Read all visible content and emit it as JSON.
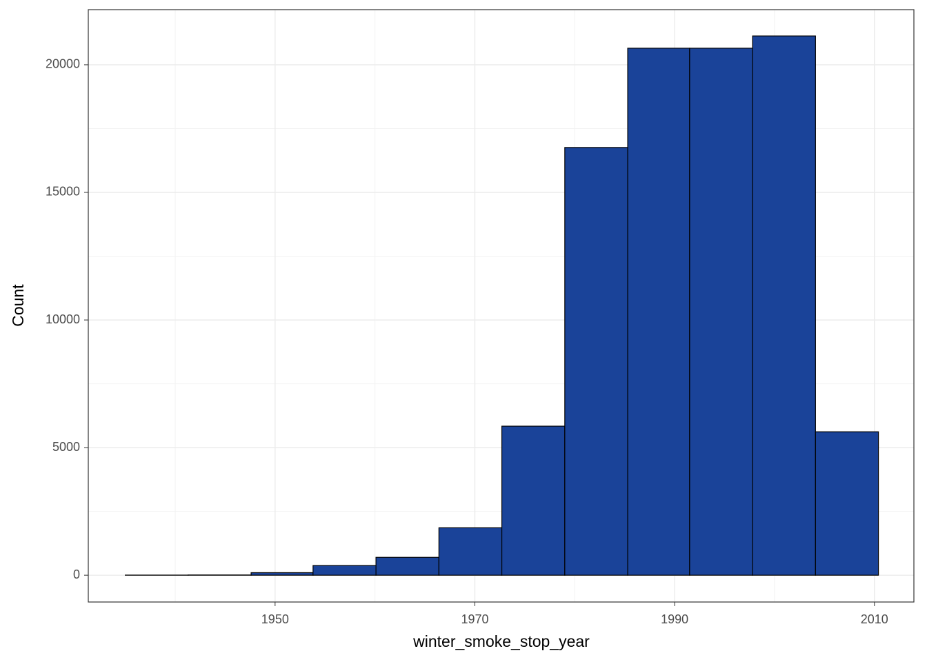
{
  "chart_data": {
    "type": "histogram",
    "x_label": "winter_smoke_stop_year",
    "y_label": "Count",
    "bins": [
      1935.0,
      1941.3,
      1947.6,
      1953.8,
      1960.1,
      1966.4,
      1972.7,
      1979.0,
      1985.3,
      1991.5,
      1997.8,
      2004.1,
      2010.4
    ],
    "values": [
      5,
      10,
      100,
      380,
      700,
      1860,
      5840,
      16760,
      20650,
      20650,
      21130,
      5620
    ],
    "color": "#1a4399",
    "edge_color": "#000000",
    "xlim": [
      1931.3,
      2013.95
    ],
    "ylim": [
      -1050,
      22160
    ],
    "xticks": [
      1950,
      1970,
      1990,
      2010
    ],
    "yticks": [
      0,
      5000,
      10000,
      15000,
      20000
    ],
    "xminor": [
      1940,
      1960,
      1980,
      2000
    ],
    "yminor": [
      2500,
      7500,
      12500,
      17500
    ],
    "grid": true
  }
}
